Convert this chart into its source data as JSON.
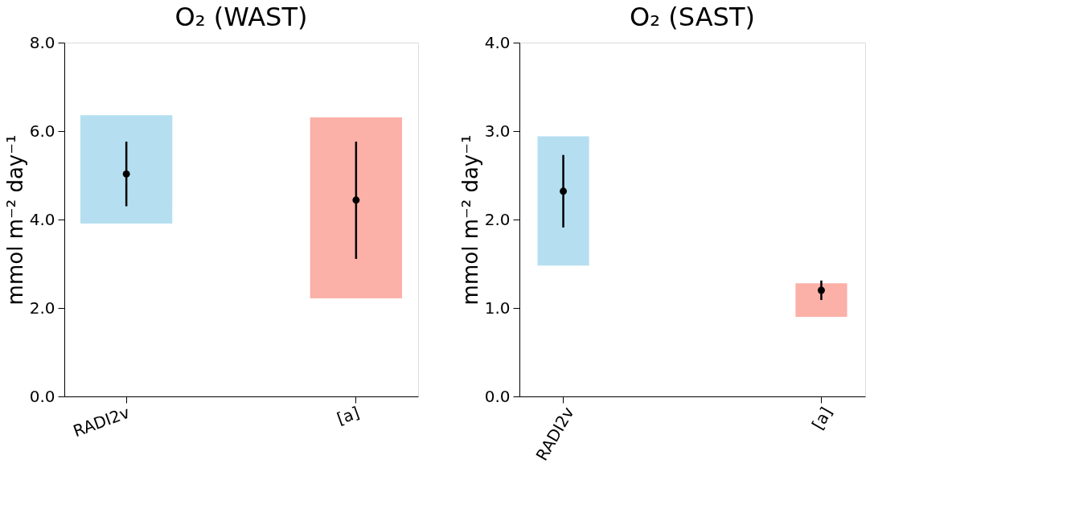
{
  "chart_data": [
    {
      "type": "bar",
      "title": "O₂ (WAST)",
      "ylabel": "mmol m⁻² day⁻¹",
      "categories": [
        "RADI2v",
        "[a]"
      ],
      "ylim": [
        0,
        8
      ],
      "yticks": [
        {
          "value": 0,
          "label": "0.0"
        },
        {
          "value": 2,
          "label": "2.0"
        },
        {
          "value": 4,
          "label": "4.0"
        },
        {
          "value": 6,
          "label": "6.0"
        },
        {
          "value": 8,
          "label": "8.0"
        }
      ],
      "grid": false,
      "series": [
        {
          "base": [
            3.91,
            2.22
          ],
          "values": [
            2.45,
            4.09
          ],
          "colors": [
            "#b5dff0",
            "#fbb0a8"
          ]
        },
        {
          "type": "scatter",
          "values": [
            5.03,
            4.44
          ],
          "errors": [
            [
              4.3,
              5.76
            ],
            [
              3.11,
              5.76
            ]
          ],
          "color": "#000000"
        }
      ]
    },
    {
      "type": "bar",
      "title": "O₂ (SAST)",
      "ylabel": "mmol m⁻² day⁻¹",
      "categories": [
        "RADI2v",
        "[a]"
      ],
      "ylim": [
        0,
        4
      ],
      "yticks": [
        {
          "value": 0,
          "label": "0.0"
        },
        {
          "value": 1,
          "label": "1.0"
        },
        {
          "value": 2,
          "label": "2.0"
        },
        {
          "value": 3,
          "label": "3.0"
        },
        {
          "value": 4,
          "label": "4.0"
        }
      ],
      "grid": false,
      "series": [
        {
          "base": [
            1.48,
            0.9
          ],
          "values": [
            1.46,
            0.38
          ],
          "colors": [
            "#b5dff0",
            "#fbb0a8"
          ]
        },
        {
          "type": "scatter",
          "values": [
            2.32,
            1.2
          ],
          "errors": [
            [
              1.91,
              2.73
            ],
            [
              1.09,
              1.31
            ]
          ],
          "color": "#000000"
        }
      ]
    }
  ]
}
